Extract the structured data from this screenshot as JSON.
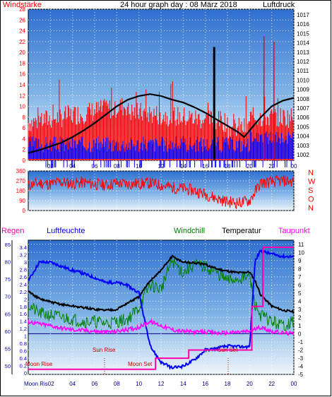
{
  "header": {
    "left_label": "Windstärke",
    "title": "24 hour graph day : 08 März 2018",
    "right_label": "Luftdruck"
  },
  "bottom_header": {
    "regen": "Regen",
    "luftfeuchte": "Luftfeuchte",
    "windchill": "Windchill",
    "temperatur": "Temperatur",
    "taupunkt": "Taupunkt"
  },
  "annotations": {
    "sun_rise": "Sun Rise",
    "sun_set": "Sun Set",
    "moon_rise": "Moon Rise",
    "moon_set": "Moon Set",
    "moon_rise_axis": "Moon Ris02"
  },
  "colors": {
    "sky_top": "#2f6fd0",
    "sky_bottom": "#e8f2fa",
    "wind_avg": "#0000ff",
    "wind_gust": "#ff0000",
    "pressure": "#000000",
    "humidity": "#0000ff",
    "windchill": "#008000",
    "temperature": "#000000",
    "dewpoint": "#ff00ff",
    "rain": "#ff00aa"
  },
  "chart_data": [
    {
      "type": "line",
      "id": "wind_pressure",
      "x_ticks": [
        "02",
        "04",
        "06",
        "08",
        "10",
        "12",
        "14",
        "16",
        "18",
        "20",
        "22",
        "00"
      ],
      "y_left_ticks": [
        "0",
        "2",
        "4",
        "6",
        "8",
        "10",
        "12",
        "14",
        "16",
        "18",
        "20",
        "22",
        "24",
        "26",
        "28"
      ],
      "y_left_range": [
        0,
        28
      ],
      "y_right_ticks": [
        "1002",
        "1003",
        "1004",
        "1005",
        "1006",
        "1007",
        "1008",
        "1009",
        "1010",
        "1011",
        "1012",
        "1013",
        "1014",
        "1015",
        "1016",
        "1017"
      ],
      "y_right_range": [
        1001.4,
        1017.6
      ],
      "series": [
        {
          "id": "pressure",
          "x": [
            0,
            1,
            2,
            3,
            4,
            5,
            6,
            7,
            8,
            9,
            10,
            11,
            12,
            13,
            14,
            15,
            16,
            17,
            18,
            19,
            19.5,
            20,
            21,
            22,
            23,
            24
          ],
          "values": [
            1002.2,
            1002.5,
            1002.9,
            1003.3,
            1003.9,
            1004.6,
            1005.4,
            1006.3,
            1007.2,
            1007.9,
            1008.3,
            1008.5,
            1008.3,
            1007.9,
            1007.6,
            1007.1,
            1006.5,
            1005.8,
            1005.1,
            1004.4,
            1003.9,
            1004.6,
            1006.0,
            1007.2,
            1007.8,
            1008.1
          ]
        },
        {
          "id": "gust_tall_spikes",
          "x": [
            16.8,
            21.3,
            22.2
          ],
          "values": [
            21,
            23,
            22
          ]
        }
      ]
    },
    {
      "type": "line",
      "id": "wind_direction",
      "y_left_ticks": [
        "0",
        "90",
        "180",
        "270",
        "360"
      ],
      "y_right_ticks": [
        "N",
        "O",
        "S",
        "W",
        "N"
      ],
      "y_range": [
        0,
        360
      ],
      "x": [
        0,
        1,
        2,
        3,
        4,
        5,
        6,
        7,
        8,
        9,
        10,
        11,
        12,
        13,
        14,
        15,
        16,
        17,
        18,
        19,
        20,
        21,
        22,
        23,
        24
      ],
      "values": [
        230,
        250,
        240,
        260,
        245,
        255,
        240,
        230,
        250,
        240,
        245,
        250,
        230,
        210,
        200,
        180,
        150,
        110,
        80,
        70,
        90,
        250,
        260,
        270,
        265
      ]
    },
    {
      "type": "line",
      "id": "temp_humidity",
      "y_regen_ticks": [
        "0",
        "0.2",
        "0.4",
        "0.6",
        "0.8",
        "1",
        "1.2",
        "1.4",
        "1.6",
        "1.8",
        "2",
        "2.2",
        "2.4",
        "2.6",
        "2.8",
        "3",
        "3.2",
        "3.4"
      ],
      "y_humidity_ticks": [
        "50",
        "55",
        "60",
        "65",
        "70",
        "75",
        "80",
        "85"
      ],
      "y_temp_ticks": [
        "-5",
        "-4",
        "-3",
        "-2",
        "-1",
        "0",
        "1",
        "2",
        "3",
        "4",
        "5",
        "6",
        "7",
        "8",
        "9",
        "10",
        "11"
      ],
      "y_temp_range": [
        -5,
        11.5
      ],
      "x_ticks": [
        "02",
        "04",
        "06",
        "08",
        "10",
        "12",
        "14",
        "16",
        "18",
        "20",
        "22",
        "00"
      ],
      "series": [
        {
          "id": "humidity",
          "x": [
            0,
            1,
            2,
            3,
            4,
            5,
            6,
            7,
            8,
            9,
            10,
            11,
            12,
            13,
            14,
            15,
            16,
            17,
            18,
            19,
            20,
            20.5,
            21,
            22,
            23,
            24
          ],
          "values": [
            6.5,
            8.8,
            8.8,
            8.3,
            7.8,
            7.4,
            6.9,
            6.3,
            6.3,
            5.9,
            5.0,
            -1.5,
            -3.5,
            -4.2,
            -4.0,
            -3.2,
            -2.0,
            -1.8,
            -1.5,
            -1.6,
            -1.6,
            9.0,
            10.2,
            9.8,
            9.5,
            9.5
          ]
        },
        {
          "id": "temperature",
          "x": [
            0,
            1,
            2,
            3,
            4,
            5,
            6,
            7,
            8,
            9,
            10,
            11,
            12,
            13,
            14,
            15,
            16,
            17,
            18,
            19,
            20,
            20.5,
            21,
            22,
            23,
            24
          ],
          "values": [
            5.2,
            4.3,
            3.9,
            3.6,
            3.4,
            3.2,
            3.0,
            2.9,
            3.0,
            3.8,
            4.5,
            6.5,
            7.8,
            9.5,
            8.8,
            8.7,
            8.5,
            8.0,
            7.7,
            7.5,
            7.6,
            6.5,
            4.8,
            3.4,
            2.9,
            2.7
          ]
        },
        {
          "id": "windchill",
          "x": [
            0,
            1,
            2,
            3,
            4,
            5,
            6,
            7,
            8,
            9,
            10,
            11,
            12,
            13,
            14,
            15,
            16,
            17,
            18,
            19,
            20,
            20.5,
            21,
            22,
            23,
            24
          ],
          "values": [
            3.5,
            2.5,
            2.3,
            2.0,
            1.8,
            1.5,
            1.5,
            1.3,
            1.5,
            1.8,
            3.2,
            6.0,
            5.5,
            9.0,
            7.5,
            8.5,
            8.2,
            7.5,
            6.5,
            6.8,
            7.0,
            3.5,
            2.3,
            1.5,
            1.0,
            1.5
          ]
        },
        {
          "id": "dewpoint",
          "x": [
            0,
            1,
            2,
            3,
            4,
            5,
            6,
            7,
            8,
            9,
            10,
            11,
            12,
            13,
            14,
            15,
            16,
            17,
            18,
            19,
            20,
            21,
            22,
            23,
            24
          ],
          "values": [
            1.5,
            1.2,
            1.0,
            0.7,
            0.5,
            0.4,
            0.3,
            0.2,
            0.3,
            0.5,
            0.8,
            1.5,
            1.0,
            0.5,
            0.3,
            0.2,
            0.2,
            0.1,
            0.1,
            0.2,
            0.3,
            0.8,
            0.3,
            0.1,
            0.0
          ]
        },
        {
          "id": "rain",
          "x": [
            0,
            11.5,
            11.5,
            14.5,
            14.5,
            20.2,
            20.2,
            21.2,
            21.2,
            24
          ],
          "values": [
            0.1,
            0.1,
            0.4,
            0.4,
            0.62,
            0.62,
            1.8,
            1.8,
            3.4,
            3.4
          ]
        }
      ]
    }
  ]
}
